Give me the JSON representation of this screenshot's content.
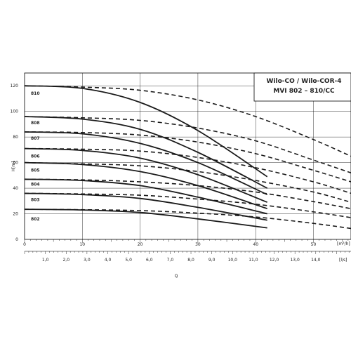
{
  "chart_data": {
    "type": "line",
    "title": "Wilo-CO / Wilo-COR-4",
    "subtitle": "MVI 802 – 810/CC",
    "ylabel": "H[m]",
    "xlabel": "Q",
    "x_unit_top": "[m³/h]",
    "x_unit_bottom": "[l/s]",
    "ylim": [
      0,
      130
    ],
    "xlim_m3h": [
      0,
      56.5
    ],
    "y_ticks": [
      "0",
      "20",
      "40",
      "60",
      "80",
      "100",
      "120"
    ],
    "x_ticks_top": [
      "0",
      "10",
      "20",
      "30",
      "40",
      "50"
    ],
    "x_ticks_bottom": [
      "1,0",
      "2,0",
      "3,0",
      "4,0",
      "5,0",
      "6,0",
      "7,0",
      "8,0",
      "9,0",
      "10,0",
      "11,0",
      "12,0",
      "13,0",
      "14,0"
    ],
    "grid": true,
    "legend": "inline-labels-left",
    "colors": {
      "curve": "#1a1a1a",
      "grid": "#000000"
    },
    "series": [
      {
        "name": "802",
        "label_y": 16,
        "solid": {
          "x": [
            0,
            10,
            20,
            30,
            42
          ],
          "y": [
            23.5,
            23,
            21,
            16,
            9
          ]
        },
        "dashed": {
          "x": [
            0,
            10,
            20,
            30,
            40,
            50,
            56.5
          ],
          "y": [
            23.5,
            23.2,
            22.5,
            20.5,
            17.5,
            12.5,
            8.5
          ]
        }
      },
      {
        "name": "803",
        "label_y": 31,
        "solid": {
          "x": [
            0,
            10,
            20,
            30,
            42
          ],
          "y": [
            36,
            35,
            32,
            25,
            15
          ]
        },
        "dashed": {
          "x": [
            0,
            10,
            20,
            30,
            40,
            50,
            56.5
          ],
          "y": [
            36,
            35.5,
            34.5,
            31.5,
            27.5,
            21.5,
            17
          ]
        }
      },
      {
        "name": "804",
        "label_y": 43,
        "solid": {
          "x": [
            0,
            10,
            20,
            30,
            42
          ],
          "y": [
            47,
            46,
            42,
            33,
            20
          ]
        },
        "dashed": {
          "x": [
            0,
            10,
            20,
            30,
            40,
            50,
            56.5
          ],
          "y": [
            47,
            46.5,
            45,
            42,
            37,
            29.5,
            24
          ]
        }
      },
      {
        "name": "805",
        "label_y": 54,
        "solid": {
          "x": [
            0,
            10,
            20,
            30,
            42
          ],
          "y": [
            60,
            58.5,
            53,
            42,
            24
          ]
        },
        "dashed": {
          "x": [
            0,
            10,
            20,
            30,
            40,
            50,
            56.5
          ],
          "y": [
            60,
            59,
            57.5,
            53,
            46,
            37,
            29
          ]
        }
      },
      {
        "name": "806",
        "label_y": 65,
        "solid": {
          "x": [
            0,
            10,
            20,
            30,
            42
          ],
          "y": [
            71,
            69.5,
            63.5,
            50.5,
            29
          ]
        },
        "dashed": {
          "x": [
            0,
            10,
            20,
            30,
            40,
            50,
            56.5
          ],
          "y": [
            71,
            70.5,
            69,
            64,
            56,
            45,
            36
          ]
        }
      },
      {
        "name": "807",
        "label_y": 79,
        "solid": {
          "x": [
            0,
            10,
            20,
            30,
            42
          ],
          "y": [
            84,
            82.5,
            75,
            60,
            35
          ]
        },
        "dashed": {
          "x": [
            0,
            10,
            20,
            30,
            40,
            50,
            56.5
          ],
          "y": [
            84,
            83.5,
            81.5,
            76,
            67,
            54,
            45
          ]
        }
      },
      {
        "name": "808",
        "label_y": 91,
        "solid": {
          "x": [
            0,
            10,
            20,
            30,
            42
          ],
          "y": [
            96,
            94,
            86,
            68,
            40
          ]
        },
        "dashed": {
          "x": [
            0,
            10,
            20,
            30,
            40,
            50,
            56.5
          ],
          "y": [
            96,
            95,
            93,
            87,
            77,
            62,
            52
          ]
        }
      },
      {
        "name": "810",
        "label_y": 114,
        "solid": {
          "x": [
            0,
            10,
            20,
            30,
            42
          ],
          "y": [
            120,
            118,
            107,
            85,
            49
          ]
        },
        "dashed": {
          "x": [
            0,
            10,
            20,
            30,
            40,
            50,
            56.5
          ],
          "y": [
            120,
            119,
            116.5,
            109,
            96,
            78,
            65
          ]
        }
      }
    ]
  }
}
